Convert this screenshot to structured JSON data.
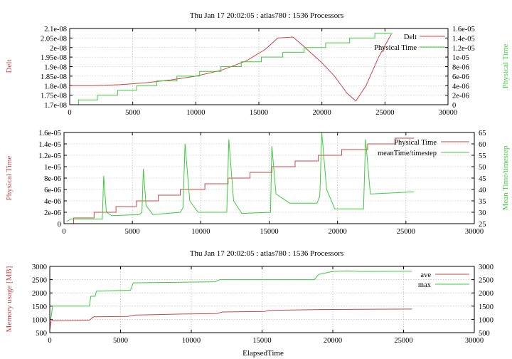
{
  "colors": {
    "red": "#c84646",
    "green": "#3ccc3c"
  },
  "chart_data": [
    {
      "type": "line",
      "title": "Thu Jan 17 20:02:05 : atlas780 : 1536 Processors",
      "xlabel": "",
      "ylabel": "Delt",
      "y2label": "Physical Time",
      "xlim": [
        0,
        30000
      ],
      "xticks": [
        0,
        5000,
        10000,
        15000,
        20000,
        25000,
        30000
      ],
      "xtick_labels": [
        "0",
        "5000",
        "10000",
        "15000",
        "20000",
        "25000",
        "30000"
      ],
      "ylim": [
        1.7e-08,
        2.1e-08
      ],
      "yticks": [
        1.7e-08,
        1.75e-08,
        1.8e-08,
        1.85e-08,
        1.9e-08,
        1.95e-08,
        2e-08,
        2.05e-08,
        2.1e-08
      ],
      "ytick_labels": [
        "1.7e-08",
        "1.75e-08",
        "1.8e-08",
        "1.85e-08",
        "1.9e-08",
        "1.95e-08",
        "2e-08",
        "2.05e-08",
        "2.1e-08"
      ],
      "y2lim": [
        0,
        1.6e-05
      ],
      "y2ticks": [
        0,
        2e-06,
        4e-06,
        6e-06,
        8e-06,
        1e-05,
        1.2e-05,
        1.4e-05,
        1.6e-05
      ],
      "y2tick_labels": [
        "0",
        "2e-06",
        "4e-06",
        "6e-06",
        "8e-06",
        "1e-05",
        "1.2e-05",
        "1.4e-05",
        "1.6e-05"
      ],
      "grid": true,
      "legend": "top-right",
      "series": [
        {
          "name": "Delt",
          "axis": "y",
          "color": "red",
          "step": false,
          "x": [
            0,
            2000,
            4000,
            6000,
            8000,
            10000,
            12000,
            14000,
            15500,
            16500,
            17700,
            18500,
            20000,
            21000,
            22000,
            22700,
            23500,
            24500,
            25500
          ],
          "y": [
            1.8e-08,
            1.8e-08,
            1.805e-08,
            1.815e-08,
            1.83e-08,
            1.85e-08,
            1.88e-08,
            1.93e-08,
            1.99e-08,
            2.05e-08,
            2.055e-08,
            2.01e-08,
            1.92e-08,
            1.85e-08,
            1.76e-08,
            1.72e-08,
            1.8e-08,
            1.95e-08,
            2.07e-08
          ]
        },
        {
          "name": "Physical Time",
          "axis": "y2",
          "color": "green",
          "step": true,
          "x": [
            700,
            2200,
            3800,
            5300,
            6900,
            8500,
            10300,
            12000,
            13600,
            15200,
            16900,
            18600,
            20300,
            22200,
            24200,
            25600
          ],
          "y": [
            1e-06,
            2e-06,
            3e-06,
            4e-06,
            5e-06,
            6e-06,
            7e-06,
            8e-06,
            9e-06,
            1e-05,
            1.1e-05,
            1.2e-05,
            1.3e-05,
            1.4e-05,
            1.5e-05,
            1.5e-05
          ]
        }
      ]
    },
    {
      "type": "line",
      "title": "",
      "xlabel": "",
      "ylabel": "Physical Time",
      "y2label": "Mean Time/timestep",
      "xlim": [
        0,
        30000
      ],
      "xticks": [
        0,
        5000,
        10000,
        15000,
        20000,
        25000,
        30000
      ],
      "xtick_labels": [
        "0",
        "5000",
        "10000",
        "15000",
        "20000",
        "25000",
        "30000"
      ],
      "ylim": [
        0,
        1.6e-05
      ],
      "yticks": [
        0,
        2e-06,
        4e-06,
        6e-06,
        8e-06,
        1e-05,
        1.2e-05,
        1.4e-05,
        1.6e-05
      ],
      "ytick_labels": [
        "0",
        "2e-06",
        "4e-06",
        "6e-06",
        "8e-06",
        "1e-05",
        "1.2e-05",
        "1.4e-05",
        "1.6e-05"
      ],
      "y2lim": [
        25,
        65
      ],
      "y2ticks": [
        25,
        30,
        35,
        40,
        45,
        50,
        55,
        60,
        65
      ],
      "y2tick_labels": [
        "25",
        "30",
        "35",
        "40",
        "45",
        "50",
        "55",
        "60",
        "65"
      ],
      "grid": true,
      "legend": "top-right",
      "series": [
        {
          "name": "Physical Time",
          "axis": "y",
          "color": "red",
          "step": true,
          "x": [
            700,
            2200,
            3800,
            5300,
            6900,
            8500,
            10300,
            12000,
            13600,
            15200,
            16900,
            18600,
            20300,
            22200,
            24200,
            25600
          ],
          "y": [
            1e-06,
            2e-06,
            3e-06,
            4e-06,
            5e-06,
            6e-06,
            7e-06,
            8e-06,
            9e-06,
            1e-05,
            1.1e-05,
            1.2e-05,
            1.3e-05,
            1.4e-05,
            1.5e-05,
            1.5e-05
          ]
        },
        {
          "name": "meanTime/timestep",
          "axis": "y2",
          "color": "green",
          "step": false,
          "x": [
            200,
            500,
            2800,
            2900,
            3100,
            3500,
            5500,
            5700,
            5800,
            6000,
            6500,
            8500,
            8700,
            8850,
            9200,
            9800,
            11900,
            12050,
            12400,
            13000,
            15100,
            15200,
            15500,
            16500,
            18500,
            18700,
            18850,
            19200,
            19800,
            21900,
            22050,
            22400,
            25600
          ],
          "y": [
            26,
            27,
            27,
            46,
            30,
            28.5,
            29,
            30,
            49,
            33,
            29,
            30,
            32,
            60,
            35,
            30,
            30,
            62,
            35,
            29.5,
            30,
            59,
            38,
            34,
            34,
            37,
            65,
            40,
            31.5,
            31.5,
            62,
            38,
            39
          ]
        }
      ]
    },
    {
      "type": "line",
      "title": "Thu Jan 17 20:02:05 : atlas780 : 1536 Processors",
      "xlabel": "ElapsedTime",
      "ylabel": "Memory usage [MB]",
      "y2label": "",
      "xlim": [
        0,
        30000
      ],
      "xticks": [
        0,
        5000,
        10000,
        15000,
        20000,
        25000,
        30000
      ],
      "xtick_labels": [
        "0",
        "5000",
        "10000",
        "15000",
        "20000",
        "25000",
        "30000"
      ],
      "ylim": [
        500,
        3000
      ],
      "yticks": [
        500,
        1000,
        1500,
        2000,
        2500,
        3000
      ],
      "ytick_labels": [
        "500",
        "1000",
        "1500",
        "2000",
        "2500",
        "3000"
      ],
      "y2lim": [
        500,
        3000
      ],
      "y2ticks": [
        500,
        1000,
        1500,
        2000,
        2500,
        3000
      ],
      "y2tick_labels": [
        "500",
        "1000",
        "1500",
        "2000",
        "2500",
        "3000"
      ],
      "grid": true,
      "legend": "top-right",
      "series": [
        {
          "name": "ave",
          "axis": "y",
          "color": "red",
          "step": false,
          "x": [
            0,
            100,
            200,
            2800,
            3100,
            5500,
            6000,
            9000,
            11800,
            12200,
            15200,
            15500,
            19000,
            22000,
            25600
          ],
          "y": [
            600,
            1000,
            950,
            970,
            1100,
            1110,
            1160,
            1200,
            1220,
            1280,
            1300,
            1340,
            1370,
            1380,
            1390
          ]
        },
        {
          "name": "max",
          "axis": "y",
          "color": "green",
          "step": false,
          "x": [
            0,
            100,
            200,
            2800,
            2900,
            3200,
            3300,
            5700,
            5900,
            11700,
            12000,
            18700,
            19000,
            20000,
            21000,
            22000,
            25600
          ],
          "y": [
            1000,
            1100,
            1500,
            1500,
            1870,
            1870,
            2070,
            2100,
            2380,
            2420,
            2500,
            2500,
            2700,
            2810,
            2830,
            2810,
            2820
          ]
        }
      ]
    }
  ]
}
